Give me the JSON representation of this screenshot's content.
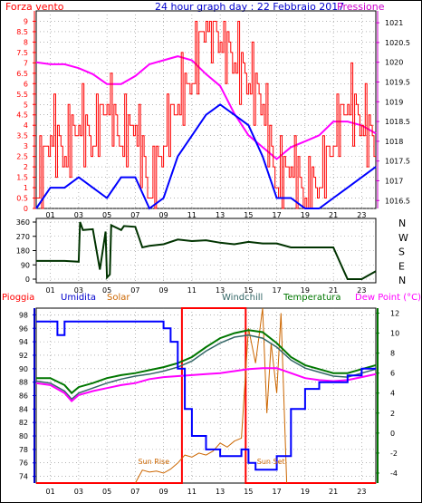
{
  "page": {
    "title": "24 hour graph day : 22 Febbraio 2017"
  },
  "chart_data": [
    {
      "type": "line",
      "title": "24 hour graph day : 22 Febbraio 2017",
      "left_axis_label": "Forza vento",
      "right_axis_label": "Pressione",
      "xlabel": "",
      "x_ticks": [
        "01",
        "03",
        "05",
        "07",
        "09",
        "11",
        "13",
        "15",
        "17",
        "19",
        "21",
        "23"
      ],
      "xlim": [
        0,
        24
      ],
      "left_ylim": [
        0,
        9.5
      ],
      "left_ticks": [
        "0",
        "0.5",
        "1",
        "1.5",
        "2",
        "2.5",
        "3",
        "3.5",
        "4",
        "4.5",
        "5",
        "5.5",
        "6",
        "6.5",
        "7",
        "7.5",
        "8",
        "8.5",
        "9"
      ],
      "right_ylim": [
        1016.3,
        1021.3
      ],
      "right_ticks": [
        "1016.5",
        "1017",
        "1017.5",
        "1018",
        "1018.5",
        "1019",
        "1019.5",
        "1020",
        "1020.5",
        "1021"
      ],
      "grid": true,
      "colors": {
        "wind_gust": "#ff0000",
        "wind_speed": "#0000ff",
        "pressure": "#ff00ff",
        "left_axis": "#ff0000",
        "right_axis": "#cc00cc"
      },
      "series": [
        {
          "name": "Pressione",
          "axis": "right",
          "x": [
            0,
            1,
            2,
            3,
            4,
            5,
            6,
            7,
            8,
            9,
            10,
            11,
            12,
            13,
            14,
            15,
            16,
            17,
            18,
            19,
            20,
            21,
            22,
            23,
            24
          ],
          "values": [
            1020.0,
            1019.95,
            1019.95,
            1019.85,
            1019.7,
            1019.45,
            1019.45,
            1019.65,
            1019.95,
            1020.05,
            1020.15,
            1020.05,
            1019.7,
            1019.4,
            1018.7,
            1018.15,
            1017.85,
            1017.55,
            1017.85,
            1018.0,
            1018.15,
            1018.5,
            1018.5,
            1018.4,
            1018.2
          ]
        },
        {
          "name": "Wind gust",
          "axis": "left",
          "x": [
            0,
            1,
            2,
            3,
            4,
            5,
            6,
            7,
            8,
            9,
            10,
            11,
            12,
            13,
            14,
            15,
            16,
            17,
            18,
            19,
            20,
            21,
            22,
            23,
            24
          ],
          "values": [
            0.5,
            3.5,
            2.5,
            4,
            3,
            5,
            3,
            4,
            0.5,
            3,
            5,
            6,
            9,
            8,
            7,
            6,
            5,
            1,
            2,
            0.5,
            1,
            3,
            5,
            4,
            3
          ]
        },
        {
          "name": "Wind speed",
          "axis": "left",
          "x": [
            0,
            1,
            2,
            3,
            4,
            5,
            6,
            7,
            8,
            9,
            10,
            11,
            12,
            13,
            14,
            15,
            16,
            17,
            18,
            19,
            20,
            21,
            22,
            23,
            24
          ],
          "values": [
            0,
            1,
            1,
            1.5,
            1,
            0.5,
            1.5,
            1.5,
            0,
            0.5,
            2.5,
            3.5,
            4.5,
            5,
            4.5,
            4,
            2.5,
            0.5,
            0.5,
            0,
            0,
            0.5,
            1,
            1.5,
            2
          ]
        }
      ]
    },
    {
      "type": "line",
      "title": "",
      "left_ticks": [
        "0",
        "90",
        "180",
        "270",
        "360"
      ],
      "left_ylim": [
        0,
        360
      ],
      "right_labels": [
        "N",
        "W",
        "S",
        "E",
        "N"
      ],
      "xlim": [
        0,
        24
      ],
      "x_ticks": [
        "01",
        "03",
        "05",
        "07",
        "09",
        "11",
        "13",
        "15",
        "17",
        "19",
        "21",
        "23"
      ],
      "grid": true,
      "colors": {
        "line": "#003300"
      },
      "series": [
        {
          "name": "Wind direction",
          "x": [
            0,
            1,
            2,
            3,
            3.1,
            3.3,
            4,
            4.5,
            4.9,
            5.0,
            5.2,
            5.3,
            6,
            6.2,
            7,
            7.5,
            8,
            8.5,
            9,
            10,
            11,
            12,
            13,
            14,
            15,
            16,
            17,
            18,
            19,
            20,
            21,
            21.5,
            22,
            22.5,
            23,
            24
          ],
          "values": [
            115,
            115,
            115,
            110,
            360,
            310,
            315,
            60,
            300,
            10,
            30,
            340,
            310,
            335,
            330,
            200,
            210,
            215,
            220,
            250,
            240,
            245,
            230,
            220,
            235,
            225,
            225,
            200,
            200,
            200,
            200,
            100,
            0,
            0,
            0,
            50
          ]
        }
      ]
    },
    {
      "type": "line",
      "title": "",
      "legend": [
        "Pioggia",
        "Umidita",
        "Solar",
        "Windchill",
        "Temperatura",
        "Dew Point (°C)"
      ],
      "xlim": [
        0,
        24
      ],
      "x_ticks": [
        "01",
        "03",
        "05",
        "07",
        "09",
        "11",
        "13",
        "15",
        "17",
        "19",
        "21",
        "23"
      ],
      "left_ylim": [
        73,
        99
      ],
      "left_ticks": [
        "74",
        "76",
        "78",
        "80",
        "82",
        "84",
        "86",
        "88",
        "90",
        "92",
        "94",
        "96",
        "98"
      ],
      "right_ylim": [
        -5,
        12.5
      ],
      "right_ticks": [
        "-4",
        "-2",
        "0",
        "2",
        "4",
        "6",
        "8",
        "10",
        "12"
      ],
      "grid": true,
      "annotations": [
        "Sun Rise",
        "Sun Set"
      ],
      "colors": {
        "Pioggia": "#ff0000",
        "Umidita": "#0000ff",
        "Solar": "#cc6600",
        "Windchill": "#336666",
        "Temperatura": "#007700",
        "Dew Point": "#ff00ff"
      },
      "series": [
        {
          "name": "Umidita",
          "axis": "left",
          "x": [
            0,
            1,
            1.5,
            2,
            3,
            4,
            5,
            6,
            7,
            8,
            9,
            9.5,
            10,
            10.5,
            11,
            12,
            13,
            14,
            14.5,
            15,
            15.5,
            16,
            16.5,
            17,
            18,
            19,
            20,
            21,
            22,
            23,
            24
          ],
          "values": [
            97,
            97,
            95,
            97,
            97,
            97,
            97,
            97,
            97,
            97,
            96,
            94,
            90,
            84,
            80,
            78,
            77,
            77,
            78,
            76,
            75,
            75,
            75,
            77,
            84,
            87,
            88,
            88,
            89,
            90,
            90
          ]
        },
        {
          "name": "Temperatura",
          "axis": "right",
          "x": [
            0,
            1,
            2,
            2.5,
            3,
            4,
            5,
            6,
            7,
            8,
            9,
            10,
            11,
            12,
            13,
            14,
            15,
            16,
            17,
            18,
            19,
            20,
            21,
            22,
            23,
            24
          ],
          "values": [
            5.5,
            5.5,
            4.8,
            4.0,
            4.6,
            5.0,
            5.5,
            5.8,
            6.0,
            6.3,
            6.6,
            7.0,
            7.6,
            8.6,
            9.5,
            10.0,
            10.3,
            10.1,
            9.0,
            7.6,
            6.8,
            6.4,
            6.0,
            6.0,
            6.4,
            6.8
          ]
        },
        {
          "name": "Windchill",
          "axis": "right",
          "x": [
            0,
            1,
            2,
            2.5,
            3,
            4,
            5,
            6,
            7,
            8,
            9,
            10,
            11,
            12,
            13,
            14,
            15,
            16,
            17,
            18,
            19,
            20,
            21,
            22,
            23,
            24
          ],
          "values": [
            5.2,
            5.0,
            4.2,
            3.4,
            4.0,
            4.5,
            5.0,
            5.4,
            5.7,
            5.9,
            6.2,
            6.6,
            7.2,
            8.2,
            9.0,
            9.6,
            9.8,
            9.5,
            8.6,
            7.3,
            6.5,
            6.1,
            5.7,
            5.6,
            6.0,
            6.4
          ]
        },
        {
          "name": "Dew Point (°C)",
          "axis": "right",
          "x": [
            0,
            1,
            2,
            2.5,
            3,
            4,
            5,
            6,
            7,
            8,
            9,
            10,
            11,
            12,
            13,
            14,
            15,
            16,
            17,
            18,
            19,
            20,
            21,
            22,
            23,
            24
          ],
          "values": [
            5.0,
            4.8,
            4.0,
            3.2,
            3.8,
            4.2,
            4.5,
            4.8,
            5.0,
            5.4,
            5.6,
            5.7,
            5.8,
            5.9,
            6.0,
            6.2,
            6.4,
            6.5,
            6.5,
            6.0,
            5.5,
            5.3,
            5.2,
            5.3,
            5.6,
            5.9
          ]
        },
        {
          "name": "Solar",
          "axis": "right",
          "x": [
            7.0,
            7.5,
            8,
            8.5,
            9,
            9.5,
            10,
            10.5,
            11,
            11.5,
            12,
            12.5,
            13,
            13.5,
            14,
            14.5,
            15,
            15.5,
            16,
            16.3,
            16.6,
            17,
            17.3,
            17.7
          ],
          "values": [
            -5,
            -3.7,
            -3.9,
            -3.8,
            -4,
            -3.6,
            -3,
            -2.2,
            -2.4,
            -2,
            -2.2,
            -1.8,
            -1.0,
            -1.4,
            -0.8,
            -0.5,
            10.5,
            7.0,
            12.5,
            2.0,
            9.0,
            4.0,
            12.0,
            -5
          ]
        },
        {
          "name": "Pioggia",
          "axis": "left",
          "x": [
            0,
            10.3,
            10.3,
            14.8,
            14.8,
            24
          ],
          "values": [
            73,
            73,
            99,
            99,
            73,
            73
          ]
        }
      ]
    }
  ]
}
